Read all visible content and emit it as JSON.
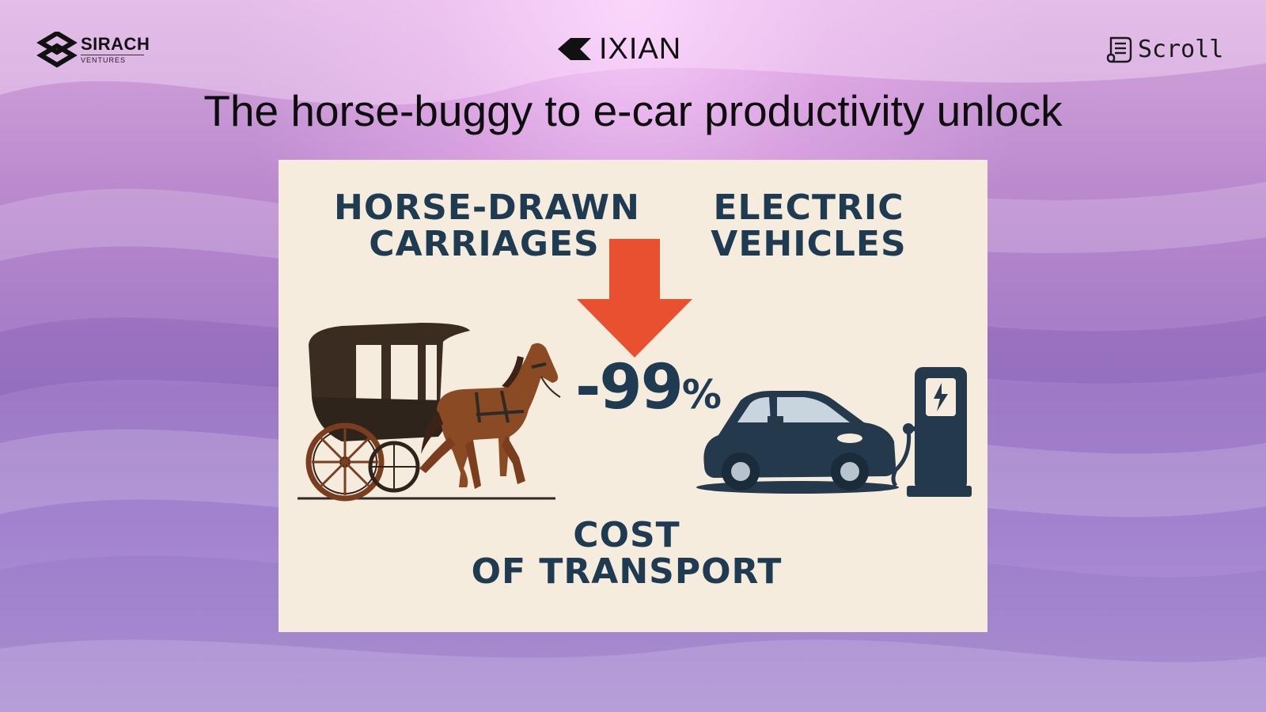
{
  "logos": {
    "sirach": {
      "name": "SIRACH",
      "sub": "VENTURES"
    },
    "ixian": {
      "name": "IXIAN"
    },
    "scroll": {
      "name": "Scroll"
    }
  },
  "title": "The horse-buggy to e-car productivity unlock",
  "infographic": {
    "left_label_line1": "HORSE-DRAWN",
    "left_label_line2": "CARRIAGES",
    "right_label_line1": "ELECTRIC",
    "right_label_line2": "VEHICLES",
    "change_value": "-99",
    "change_unit": "%",
    "bottom_label_line1": "COST",
    "bottom_label_line2": "OF TRANSPORT",
    "icons": [
      "horse-carriage-illustration",
      "electric-car-illustration",
      "charging-station-icon",
      "lightning-bolt-icon",
      "down-arrow-icon"
    ]
  },
  "colors": {
    "card_background": "#f5ecdd",
    "label_text": "#1f3b52",
    "arrow": "#e8502f",
    "car": "#25394d",
    "horse": "#8a4a24",
    "carriage": "#3b2c22"
  }
}
